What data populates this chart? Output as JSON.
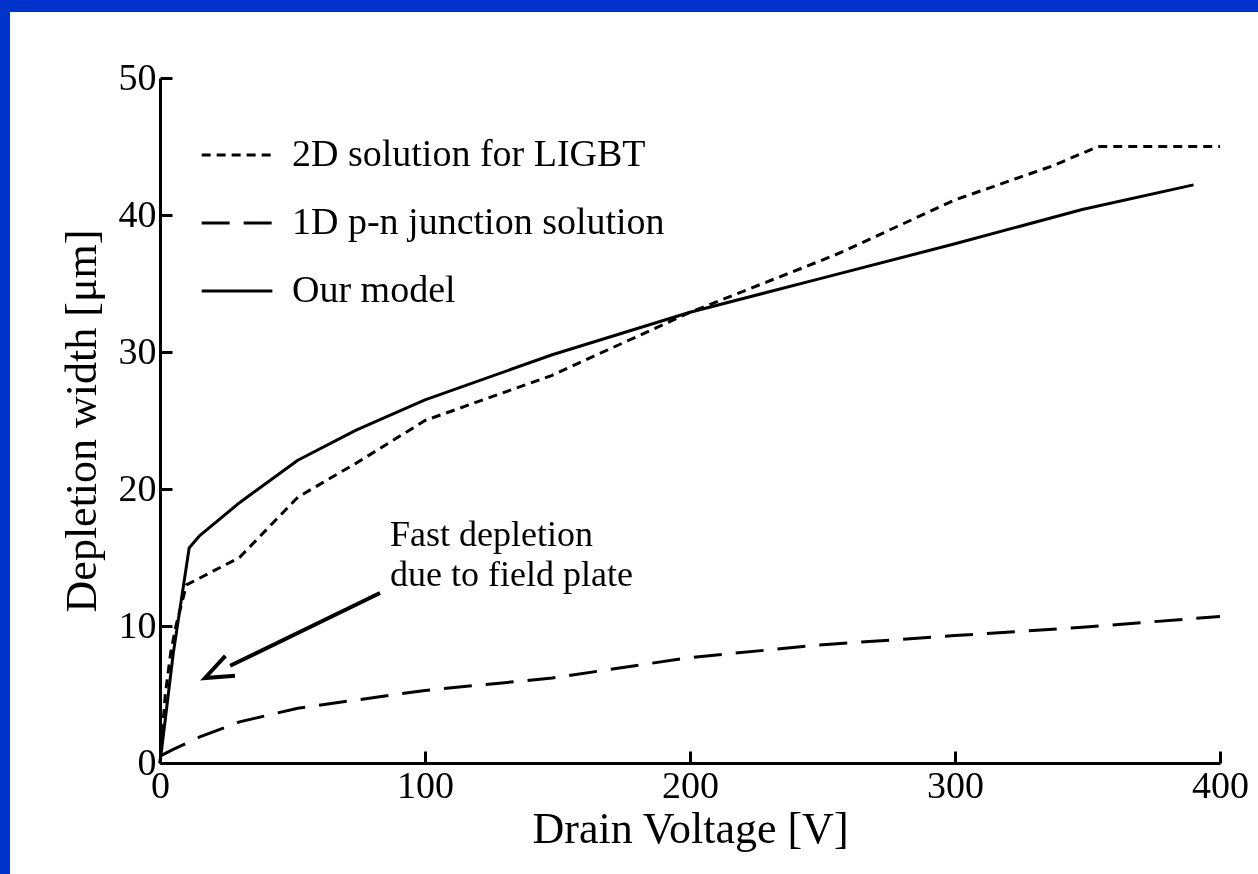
{
  "chart_data": {
    "type": "line",
    "xlabel": "Drain Voltage [V]",
    "ylabel": "Depletion width [μm]",
    "xlim": [
      0,
      400
    ],
    "xticks": [
      0,
      100,
      200,
      300,
      400
    ],
    "ylim": [
      0,
      50
    ],
    "yticks": [
      0,
      10,
      20,
      30,
      40,
      50
    ],
    "grid": false,
    "legend": "top left",
    "marker": "none",
    "series": [
      {
        "name": "2D solution for LIGBT",
        "color": "#000000",
        "line_style": "dotted",
        "x": [
          0,
          2,
          4,
          6,
          10,
          20,
          30,
          52,
          75,
          100,
          148,
          200,
          255,
          300,
          337,
          354,
          400
        ],
        "values": [
          0,
          5,
          8,
          10,
          13,
          14,
          15,
          19.4,
          22,
          25,
          28.3,
          32.9,
          37.1,
          41.1,
          43.6,
          45,
          45
        ]
      },
      {
        "name": "1D p-n junction solution",
        "color": "#000000",
        "line_style": "dashed",
        "x": [
          0,
          5,
          15,
          30,
          52,
          100,
          148,
          200,
          248,
          300,
          348,
          400
        ],
        "values": [
          0.5,
          1,
          1.9,
          3,
          4,
          5.3,
          6.2,
          7.7,
          8.6,
          9.3,
          9.9,
          10.7
        ]
      },
      {
        "name": "Our model",
        "color": "#000000",
        "line_style": "solid",
        "x": [
          0,
          5,
          11,
          15,
          30,
          52,
          74,
          100,
          148,
          200,
          248,
          300,
          348,
          390
        ],
        "values": [
          0,
          8,
          15.7,
          16.6,
          19,
          22.1,
          24.3,
          26.5,
          29.8,
          32.9,
          35.3,
          37.9,
          40.4,
          42.2
        ]
      }
    ],
    "annotations": [
      "Fast depletion\ndue to field plate"
    ]
  }
}
